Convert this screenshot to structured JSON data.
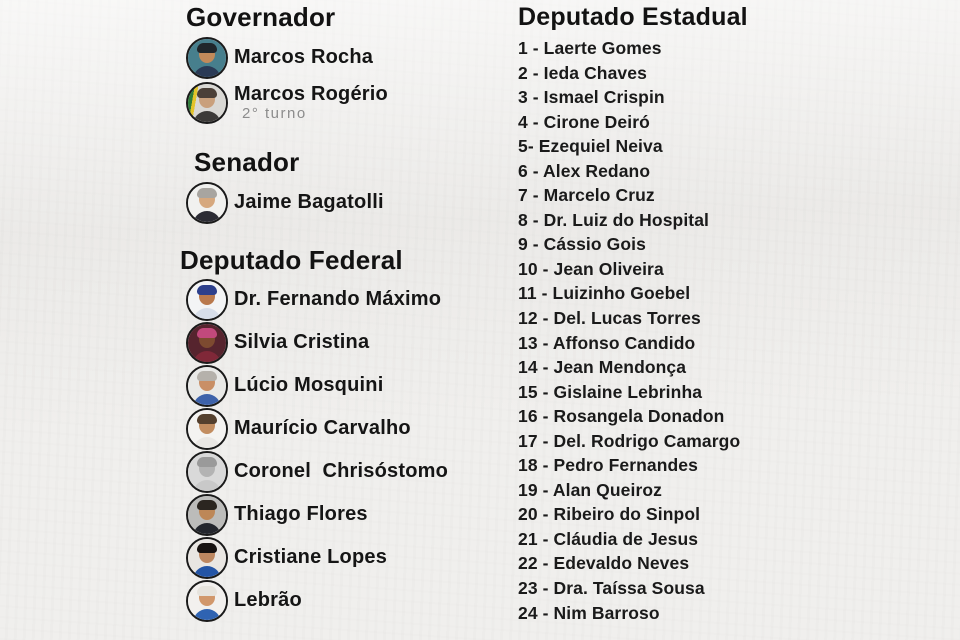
{
  "colors": {
    "background": "#f0efed",
    "text": "#151515",
    "note_gray": "#8c8c8c",
    "avatar_ring": "#1a1a1a"
  },
  "sections": {
    "governador": {
      "title": "Governador",
      "people": [
        {
          "name": "Marcos Rocha",
          "note": "",
          "avatar": {
            "bg": "#477f8d",
            "hair": "#20262b",
            "skin": "#c28a5a",
            "shirt": "#2a3a55"
          }
        },
        {
          "name": "Marcos Rogério",
          "note": "2° turno",
          "avatar": {
            "bg": "linear-gradient(100deg,#2f7d3a 0 16%,#e3c42a 16% 24%,#d9d8d4 24%)",
            "hair": "#4b4038",
            "skin": "#c9a07c",
            "shirt": "#3c3a38"
          }
        }
      ]
    },
    "senador": {
      "title": "Senador",
      "people": [
        {
          "name": "Jaime Bagatolli",
          "note": "",
          "avatar": {
            "bg": "#f1f1ef",
            "hair": "#a8a5a0",
            "skin": "#d6a87e",
            "shirt": "#2c2c34"
          }
        }
      ]
    },
    "deputado_federal": {
      "title": "Deputado Federal",
      "people": [
        {
          "name": "Dr. Fernando Máximo",
          "note": "",
          "avatar": {
            "bg": "#f3f4f5",
            "hair": "#2c3f8c",
            "skin": "#b9794d",
            "shirt": "#d7dee9"
          }
        },
        {
          "name": "Silvia Cristina",
          "note": "",
          "avatar": {
            "bg": "#56242e",
            "hair": "#c2497c",
            "skin": "#7d4a30",
            "shirt": "#802838"
          }
        },
        {
          "name": "Lúcio Mosquini",
          "note": "",
          "avatar": {
            "bg": "#e9e9e7",
            "hair": "#b5b1ab",
            "skin": "#c98f66",
            "shirt": "#3d62aa"
          }
        },
        {
          "name": "Maurício Carvalho",
          "note": "",
          "avatar": {
            "bg": "#f4f3f1",
            "hair": "#54402e",
            "skin": "#c28d60",
            "shirt": "#e9e7e4"
          }
        },
        {
          "name": "Coronel  Chrisóstomo",
          "note": "",
          "avatar": {
            "bg": "#d9d9d9",
            "hair": "#9a9a9a",
            "skin": "#b3b3b3",
            "shirt": "#c9c9c9"
          }
        },
        {
          "name": "Thiago Flores",
          "note": "",
          "avatar": {
            "bg": "#bcbcba",
            "hair": "#2b2620",
            "skin": "#bd8757",
            "shirt": "#23262d"
          }
        },
        {
          "name": "Cristiane Lopes",
          "note": "",
          "avatar": {
            "bg": "#e9e6e2",
            "hair": "#171210",
            "skin": "#bd8760",
            "shirt": "#2455a6"
          }
        },
        {
          "name": "Lebrão",
          "note": "",
          "avatar": {
            "bg": "#f2f0ee",
            "hair": "#e6e3dd",
            "skin": "#d1976b",
            "shirt": "#2f63b2"
          }
        }
      ]
    },
    "deputado_estadual": {
      "title": "Deputado Estadual",
      "items": [
        "1 - Laerte Gomes",
        "2 - Ieda Chaves",
        "3 - Ismael Crispin",
        "4 - Cirone Deiró",
        "5- Ezequiel Neiva",
        "6 - Alex Redano",
        "7 - Marcelo Cruz",
        "8 - Dr. Luiz do Hospital",
        "9 - Cássio Gois",
        "10 - Jean Oliveira",
        "11 - Luizinho Goebel",
        "12 - Del. Lucas Torres",
        "13 - Affonso Candido",
        "14 - Jean Mendonça",
        "15 - Gislaine Lebrinha",
        "16 - Rosangela Donadon",
        "17 - Del. Rodrigo Camargo",
        "18 - Pedro Fernandes",
        "19 - Alan Queiroz",
        "20 - Ribeiro do Sinpol",
        "21 - Cláudia de Jesus",
        "22 - Edevaldo Neves",
        "23 - Dra. Taíssa Sousa",
        "24 - Nim Barroso"
      ]
    }
  }
}
